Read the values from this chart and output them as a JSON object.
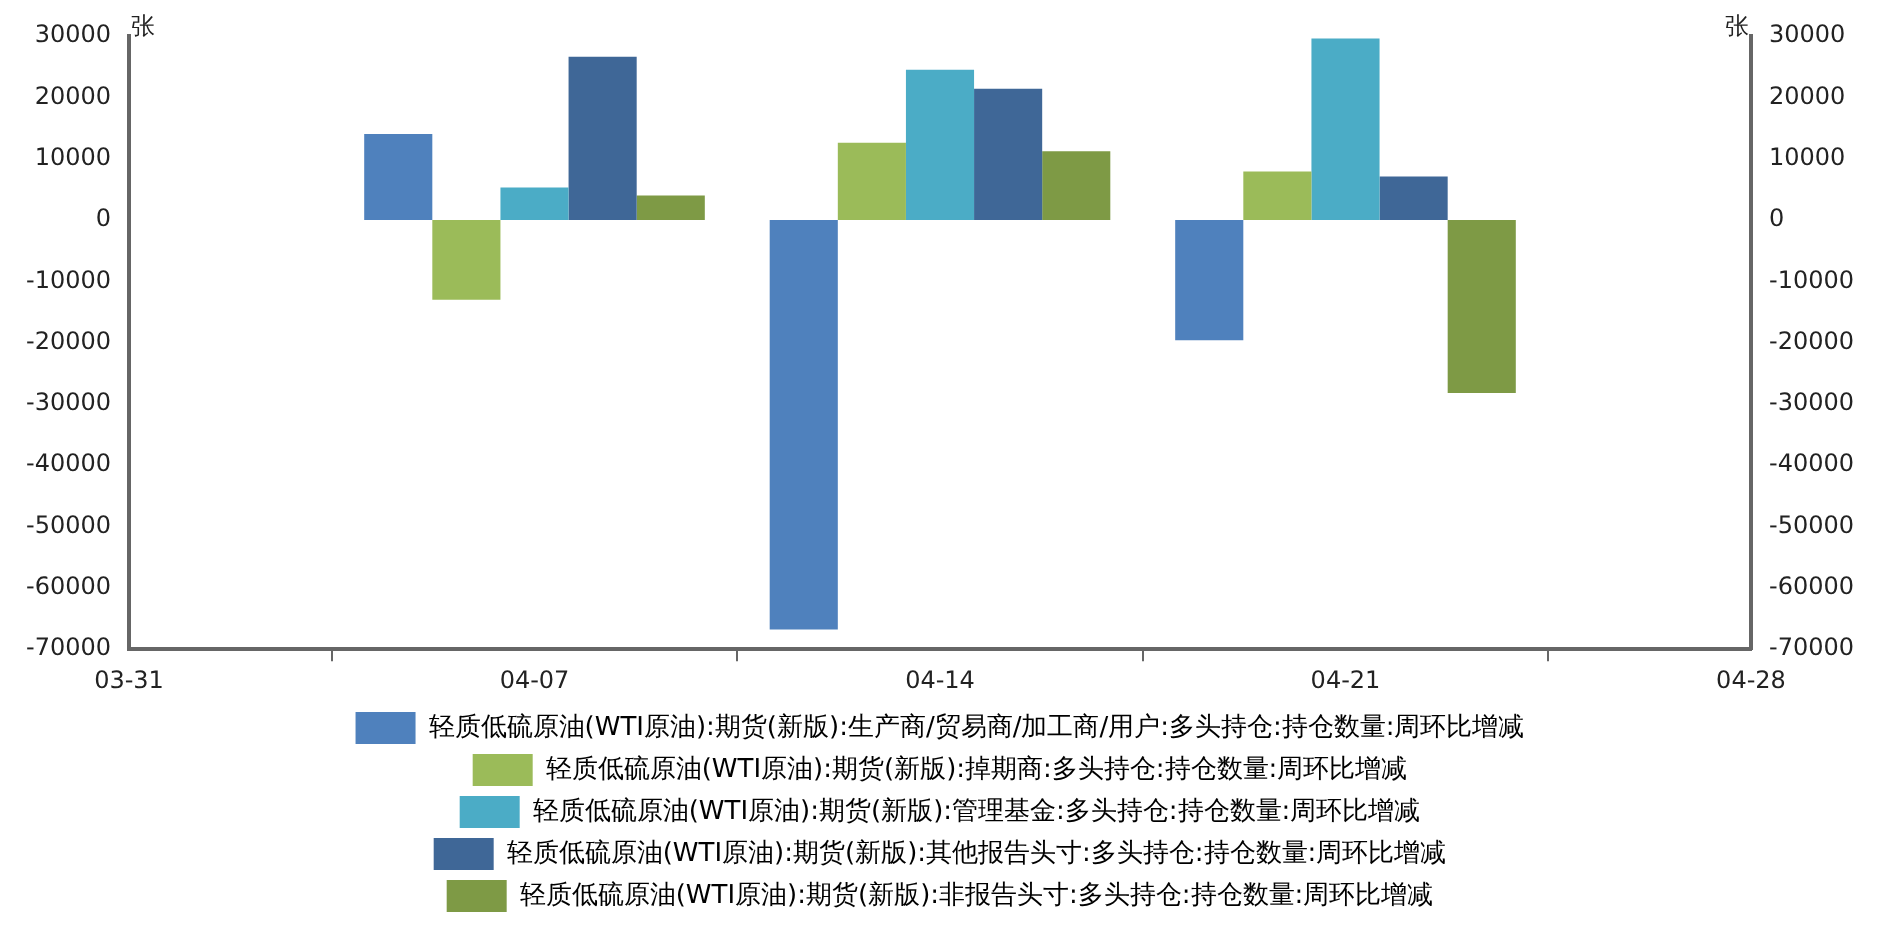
{
  "chart_data": {
    "type": "bar",
    "ylabel": "张",
    "y2label": "张",
    "x": [
      "--04-07",
      "--04-14",
      "--04-21"
    ],
    "xlim": [
      "--03-31",
      "--04-28"
    ],
    "xticks": [
      {
        "value": "--03-31",
        "label": "03-31"
      },
      {
        "value": "--04-07",
        "label": "04-07"
      },
      {
        "value": "--04-14",
        "label": "04-14"
      },
      {
        "value": "--04-21",
        "label": "04-21"
      },
      {
        "value": "--04-28",
        "label": "04-28"
      }
    ],
    "ylim": [
      -70000,
      30000
    ],
    "yticks": [
      -70000,
      -60000,
      -50000,
      -40000,
      -30000,
      -20000,
      -10000,
      0,
      10000,
      20000,
      30000
    ],
    "y2lim": [
      -70000,
      30000
    ],
    "y2ticks": [
      -70000,
      -60000,
      -50000,
      -40000,
      -30000,
      -20000,
      -10000,
      0,
      10000,
      20000,
      30000
    ],
    "series": [
      {
        "name": "轻质低硫原油(WTI原油):期货(新版):生产商/贸易商/加工商/用户:多头持仓:持仓数量:周环比增减",
        "color": "#4f81bd",
        "values": [
          14000,
          -66800,
          -19600
        ]
      },
      {
        "name": "轻质低硫原油(WTI原油):期货(新版):掉期商:多头持仓:持仓数量:周环比增减",
        "color": "#9bbb59",
        "values": [
          -13000,
          12600,
          7900
        ]
      },
      {
        "name": "轻质低硫原油(WTI原油):期货(新版):管理基金:多头持仓:持仓数量:周环比增减",
        "color": "#4bacc6",
        "values": [
          5300,
          24500,
          29600
        ]
      },
      {
        "name": "轻质低硫原油(WTI原油):期货(新版):其他报告头寸:多头持仓:持仓数量:周环比增减",
        "color": "#3f6797",
        "values": [
          26600,
          21400,
          7100
        ]
      },
      {
        "name": "轻质低硫原油(WTI原油):期货(新版):非报告头寸:多头持仓:持仓数量:周环比增减",
        "color": "#7e9a45",
        "values": [
          4000,
          11200,
          -28200
        ]
      }
    ],
    "legend": "bottom",
    "grid": false
  }
}
